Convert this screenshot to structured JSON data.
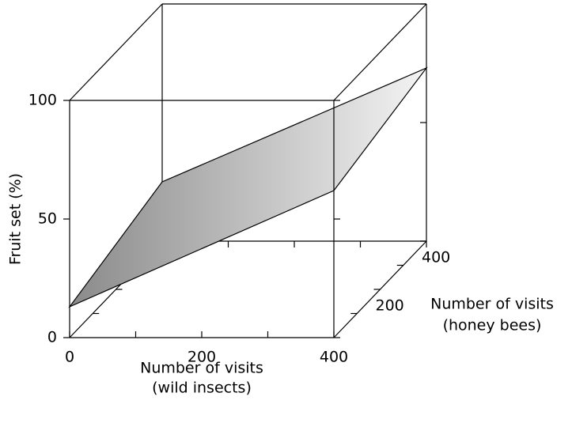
{
  "chart_data": {
    "type": "surface3d",
    "xlabel": [
      "Number of visits",
      "(wild insects)"
    ],
    "ylabel": [
      "Number of visits",
      "(honey bees)"
    ],
    "zlabel": "Fruit set (%)",
    "xlim": [
      0,
      400
    ],
    "xticks": [
      0,
      200,
      400
    ],
    "xminor": [
      100,
      300
    ],
    "ylim": [
      0,
      400
    ],
    "yticks": [
      200,
      400
    ],
    "yminor": [
      100,
      300
    ],
    "zlim": [
      0,
      100
    ],
    "zticks": [
      0,
      50,
      100
    ],
    "corners": [
      {
        "x": 0,
        "y": 0,
        "z": 13
      },
      {
        "x": 400,
        "y": 0,
        "z": 62
      },
      {
        "x": 400,
        "y": 400,
        "z": 73
      },
      {
        "x": 0,
        "y": 400,
        "z": 25
      }
    ],
    "colors": [
      "#8a8a8a",
      "#f4f4f4"
    ]
  }
}
